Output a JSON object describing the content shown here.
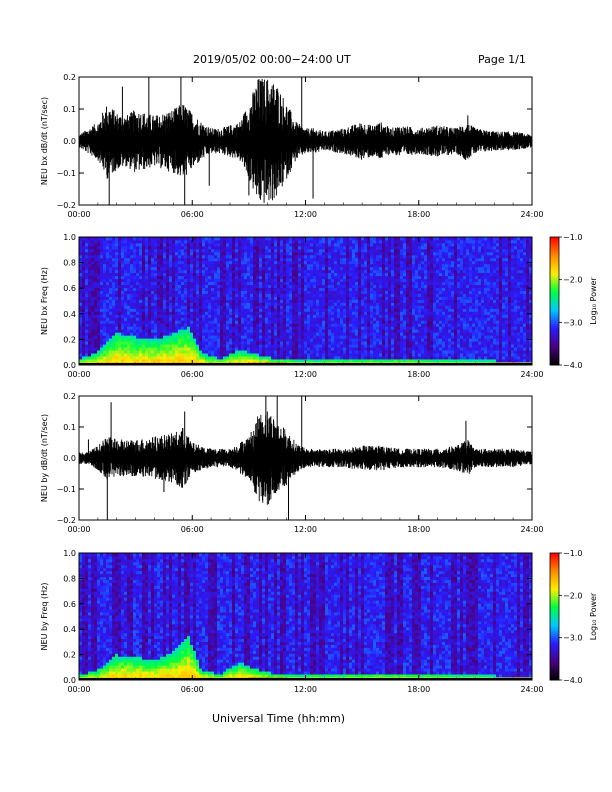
{
  "header": {
    "title": "2019/05/02  00:00−24:00 UT",
    "page": "Page 1/1"
  },
  "xlabel": "Universal Time (hh:mm)",
  "chart_data": [
    {
      "type": "line",
      "id": "bx-wave",
      "ylabel": "NEU bx dB/dt (nT/sec)",
      "x_ticks": [
        "00:00",
        "06:00",
        "12:00",
        "18:00",
        "24:00"
      ],
      "y_ticks": [
        "0.2",
        "0.1",
        "0.0",
        "−0.1",
        "−0.2"
      ],
      "xlim": [
        0,
        24
      ],
      "ylim": [
        -0.2,
        0.2
      ],
      "envelope": [
        {
          "t": 0.0,
          "a": 0.02
        },
        {
          "t": 0.5,
          "a": 0.04
        },
        {
          "t": 1.0,
          "a": 0.06
        },
        {
          "t": 1.5,
          "a": 0.12
        },
        {
          "t": 2.0,
          "a": 0.09
        },
        {
          "t": 2.5,
          "a": 0.08
        },
        {
          "t": 3.0,
          "a": 0.1
        },
        {
          "t": 3.5,
          "a": 0.09
        },
        {
          "t": 4.0,
          "a": 0.08
        },
        {
          "t": 4.5,
          "a": 0.09
        },
        {
          "t": 5.0,
          "a": 0.1
        },
        {
          "t": 5.5,
          "a": 0.12
        },
        {
          "t": 6.0,
          "a": 0.09
        },
        {
          "t": 6.5,
          "a": 0.06
        },
        {
          "t": 7.0,
          "a": 0.04
        },
        {
          "t": 7.5,
          "a": 0.04
        },
        {
          "t": 8.0,
          "a": 0.05
        },
        {
          "t": 8.5,
          "a": 0.06
        },
        {
          "t": 9.0,
          "a": 0.12
        },
        {
          "t": 9.5,
          "a": 0.2
        },
        {
          "t": 10.0,
          "a": 0.2
        },
        {
          "t": 10.5,
          "a": 0.18
        },
        {
          "t": 11.0,
          "a": 0.12
        },
        {
          "t": 11.5,
          "a": 0.06
        },
        {
          "t": 12.0,
          "a": 0.04
        },
        {
          "t": 12.5,
          "a": 0.04
        },
        {
          "t": 13.0,
          "a": 0.03
        },
        {
          "t": 14.0,
          "a": 0.04
        },
        {
          "t": 15.0,
          "a": 0.06
        },
        {
          "t": 15.5,
          "a": 0.05
        },
        {
          "t": 16.0,
          "a": 0.06
        },
        {
          "t": 16.5,
          "a": 0.04
        },
        {
          "t": 17.0,
          "a": 0.05
        },
        {
          "t": 18.0,
          "a": 0.04
        },
        {
          "t": 19.0,
          "a": 0.05
        },
        {
          "t": 20.0,
          "a": 0.04
        },
        {
          "t": 20.5,
          "a": 0.06
        },
        {
          "t": 21.0,
          "a": 0.04
        },
        {
          "t": 22.0,
          "a": 0.03
        },
        {
          "t": 23.0,
          "a": 0.03
        },
        {
          "t": 24.0,
          "a": 0.02
        }
      ],
      "spikes": [
        {
          "t": 1.6,
          "v": -0.21
        },
        {
          "t": 2.3,
          "v": 0.17
        },
        {
          "t": 3.7,
          "v": 0.2
        },
        {
          "t": 5.4,
          "v": 0.2
        },
        {
          "t": 5.6,
          "v": -0.21
        },
        {
          "t": 6.9,
          "v": -0.14
        },
        {
          "t": 9.0,
          "v": -0.17
        },
        {
          "t": 11.8,
          "v": 0.2
        },
        {
          "t": 12.4,
          "v": -0.18
        },
        {
          "t": 20.6,
          "v": 0.08
        }
      ]
    },
    {
      "type": "heatmap",
      "id": "bx-spec",
      "ylabel": "NEU bx Freq (Hz)",
      "x_ticks": [
        "00:00",
        "06:00",
        "12:00",
        "18:00",
        "24:00"
      ],
      "y_ticks": [
        "1.0",
        "0.8",
        "0.6",
        "0.4",
        "0.2",
        "0.0"
      ],
      "xlim": [
        0,
        24
      ],
      "ylim": [
        0,
        1.0
      ],
      "colorbar": {
        "label": "Log₁₀ Power",
        "ticks": [
          "−1.0",
          "−2.0",
          "−3.0",
          "−4.0"
        ],
        "range": [
          -4.0,
          -1.0
        ],
        "colors": [
          "#000000",
          "#4b0080",
          "#2a1cff",
          "#00c8ff",
          "#00ff40",
          "#ffee00",
          "#ff8800",
          "#ff0000"
        ]
      },
      "activity": [
        {
          "t": 0.0,
          "f": 0.05
        },
        {
          "t": 1.0,
          "f": 0.1
        },
        {
          "t": 2.0,
          "f": 0.25
        },
        {
          "t": 3.0,
          "f": 0.22
        },
        {
          "t": 4.0,
          "f": 0.2
        },
        {
          "t": 5.0,
          "f": 0.25
        },
        {
          "t": 5.8,
          "f": 0.3
        },
        {
          "t": 6.5,
          "f": 0.1
        },
        {
          "t": 7.5,
          "f": 0.05
        },
        {
          "t": 8.5,
          "f": 0.12
        },
        {
          "t": 9.5,
          "f": 0.08
        },
        {
          "t": 10.5,
          "f": 0.05
        },
        {
          "t": 12.0,
          "f": 0.04
        },
        {
          "t": 16.0,
          "f": 0.05
        },
        {
          "t": 20.0,
          "f": 0.04
        },
        {
          "t": 24.0,
          "f": 0.03
        }
      ]
    },
    {
      "type": "line",
      "id": "by-wave",
      "ylabel": "NEU by dB/dt (nT/sec)",
      "x_ticks": [
        "00:00",
        "06:00",
        "12:00",
        "18:00",
        "24:00"
      ],
      "y_ticks": [
        "0.2",
        "0.1",
        "0.0",
        "−0.1",
        "−0.2"
      ],
      "xlim": [
        0,
        24
      ],
      "ylim": [
        -0.2,
        0.2
      ],
      "envelope": [
        {
          "t": 0.0,
          "a": 0.02
        },
        {
          "t": 0.5,
          "a": 0.02
        },
        {
          "t": 1.0,
          "a": 0.04
        },
        {
          "t": 1.5,
          "a": 0.07
        },
        {
          "t": 2.0,
          "a": 0.06
        },
        {
          "t": 3.0,
          "a": 0.06
        },
        {
          "t": 4.0,
          "a": 0.07
        },
        {
          "t": 5.0,
          "a": 0.08
        },
        {
          "t": 5.5,
          "a": 0.1
        },
        {
          "t": 6.0,
          "a": 0.05
        },
        {
          "t": 7.0,
          "a": 0.03
        },
        {
          "t": 8.0,
          "a": 0.03
        },
        {
          "t": 8.5,
          "a": 0.05
        },
        {
          "t": 9.0,
          "a": 0.07
        },
        {
          "t": 9.5,
          "a": 0.14
        },
        {
          "t": 10.0,
          "a": 0.16
        },
        {
          "t": 10.5,
          "a": 0.12
        },
        {
          "t": 11.0,
          "a": 0.09
        },
        {
          "t": 11.5,
          "a": 0.05
        },
        {
          "t": 12.0,
          "a": 0.03
        },
        {
          "t": 13.0,
          "a": 0.03
        },
        {
          "t": 14.0,
          "a": 0.03
        },
        {
          "t": 15.0,
          "a": 0.04
        },
        {
          "t": 16.0,
          "a": 0.04
        },
        {
          "t": 17.0,
          "a": 0.03
        },
        {
          "t": 18.0,
          "a": 0.03
        },
        {
          "t": 19.0,
          "a": 0.03
        },
        {
          "t": 20.0,
          "a": 0.04
        },
        {
          "t": 20.6,
          "a": 0.06
        },
        {
          "t": 21.0,
          "a": 0.03
        },
        {
          "t": 22.0,
          "a": 0.03
        },
        {
          "t": 23.0,
          "a": 0.03
        },
        {
          "t": 24.0,
          "a": 0.02
        }
      ],
      "spikes": [
        {
          "t": 0.5,
          "v": 0.06
        },
        {
          "t": 1.5,
          "v": -0.21
        },
        {
          "t": 1.7,
          "v": 0.18
        },
        {
          "t": 4.5,
          "v": -0.11
        },
        {
          "t": 5.6,
          "v": 0.15
        },
        {
          "t": 9.9,
          "v": 0.2
        },
        {
          "t": 10.5,
          "v": 0.2
        },
        {
          "t": 11.1,
          "v": -0.21
        },
        {
          "t": 11.8,
          "v": 0.2
        },
        {
          "t": 20.5,
          "v": 0.12
        }
      ]
    },
    {
      "type": "heatmap",
      "id": "by-spec",
      "ylabel": "NEU by Freq (Hz)",
      "x_ticks": [
        "00:00",
        "06:00",
        "12:00",
        "18:00",
        "24:00"
      ],
      "y_ticks": [
        "1.0",
        "0.8",
        "0.6",
        "0.4",
        "0.2",
        "0.0"
      ],
      "xlim": [
        0,
        24
      ],
      "ylim": [
        0,
        1.0
      ],
      "colorbar": {
        "label": "Log₁₀ Power",
        "ticks": [
          "−1.0",
          "−2.0",
          "−3.0",
          "−4.0"
        ],
        "range": [
          -4.0,
          -1.0
        ],
        "colors": [
          "#000000",
          "#4b0080",
          "#2a1cff",
          "#00c8ff",
          "#00ff40",
          "#ffee00",
          "#ff8800",
          "#ff0000"
        ]
      },
      "activity": [
        {
          "t": 0.0,
          "f": 0.04
        },
        {
          "t": 1.0,
          "f": 0.08
        },
        {
          "t": 2.0,
          "f": 0.2
        },
        {
          "t": 3.0,
          "f": 0.18
        },
        {
          "t": 4.0,
          "f": 0.16
        },
        {
          "t": 5.0,
          "f": 0.22
        },
        {
          "t": 5.8,
          "f": 0.35
        },
        {
          "t": 6.5,
          "f": 0.08
        },
        {
          "t": 7.5,
          "f": 0.05
        },
        {
          "t": 8.5,
          "f": 0.14
        },
        {
          "t": 9.5,
          "f": 0.08
        },
        {
          "t": 10.5,
          "f": 0.05
        },
        {
          "t": 12.0,
          "f": 0.04
        },
        {
          "t": 16.0,
          "f": 0.05
        },
        {
          "t": 20.0,
          "f": 0.04
        },
        {
          "t": 24.0,
          "f": 0.03
        }
      ]
    }
  ]
}
